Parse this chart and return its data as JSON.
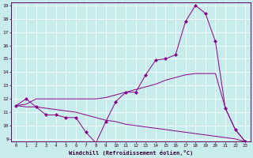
{
  "xlabel": "Windchill (Refroidissement éolien,°C)",
  "background_color": "#c8ecec",
  "line_color": "#880088",
  "x": [
    0,
    1,
    2,
    3,
    4,
    5,
    6,
    7,
    8,
    9,
    10,
    11,
    12,
    13,
    14,
    15,
    16,
    17,
    18,
    19,
    20,
    21,
    22,
    23
  ],
  "line_main": [
    11.5,
    12.0,
    11.4,
    10.8,
    10.8,
    10.6,
    10.6,
    9.5,
    8.7,
    10.3,
    11.8,
    12.5,
    12.5,
    13.8,
    14.9,
    15.0,
    15.3,
    17.8,
    19.0,
    18.4,
    16.3,
    11.3,
    9.7,
    8.8
  ],
  "line_low": [
    11.5,
    11.4,
    11.4,
    11.3,
    11.2,
    11.1,
    11.0,
    10.8,
    10.6,
    10.4,
    10.3,
    10.1,
    10.0,
    9.9,
    9.8,
    9.7,
    9.6,
    9.5,
    9.4,
    9.3,
    9.2,
    9.1,
    9.0,
    8.8
  ],
  "line_upper": [
    11.5,
    11.6,
    12.0,
    12.0,
    12.0,
    12.0,
    12.0,
    12.0,
    12.0,
    12.1,
    12.3,
    12.5,
    12.7,
    12.9,
    13.1,
    13.4,
    13.6,
    13.8,
    13.9,
    13.9,
    13.9,
    11.3,
    9.7,
    8.8
  ],
  "ylim": [
    9,
    19
  ],
  "xlim": [
    -0.5,
    23.5
  ],
  "yticks": [
    9,
    10,
    11,
    12,
    13,
    14,
    15,
    16,
    17,
    18,
    19
  ],
  "xticks": [
    0,
    1,
    2,
    3,
    4,
    5,
    6,
    7,
    8,
    9,
    10,
    11,
    12,
    13,
    14,
    15,
    16,
    17,
    18,
    19,
    20,
    21,
    22,
    23
  ],
  "markersize": 2.5,
  "linewidth": 0.7
}
